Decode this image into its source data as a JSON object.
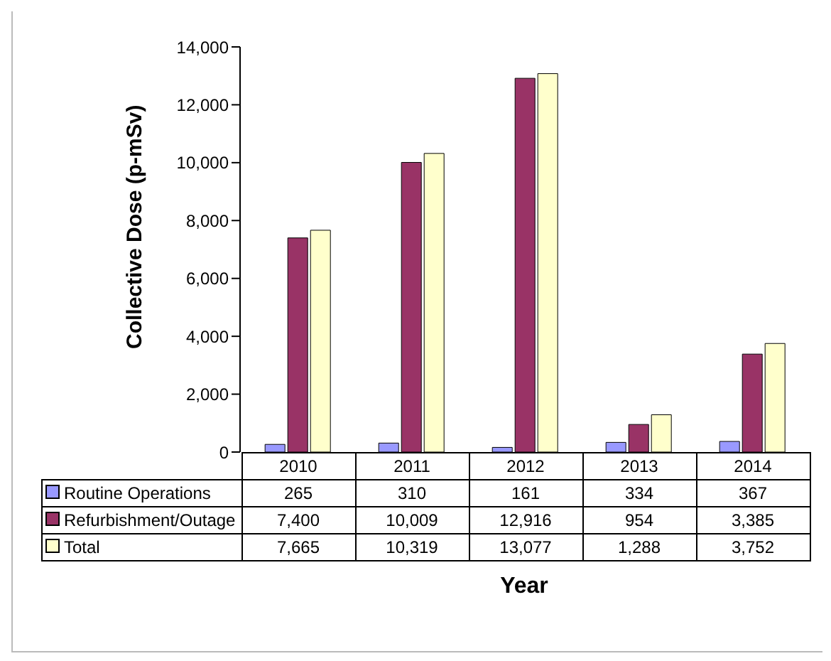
{
  "chart_data": {
    "type": "bar",
    "xlabel": "Year",
    "ylabel": "Collective Dose (p-mSv)",
    "categories": [
      "2010",
      "2011",
      "2012",
      "2013",
      "2014"
    ],
    "series": [
      {
        "name": "Routine Operations",
        "color": "#9999ff",
        "values": [
          265,
          310,
          161,
          334,
          367
        ],
        "value_labels": [
          "265",
          "310",
          "161",
          "334",
          "367"
        ]
      },
      {
        "name": "Refurbishment/Outage",
        "color": "#993366",
        "values": [
          7400,
          10009,
          12916,
          954,
          3385
        ],
        "value_labels": [
          "7,400",
          "10,009",
          "12,916",
          "954",
          "3,385"
        ]
      },
      {
        "name": "Total",
        "color": "#ffffcc",
        "values": [
          7665,
          10319,
          13077,
          1288,
          3752
        ],
        "value_labels": [
          "7,665",
          "10,319",
          "13,077",
          "1,288",
          "3,752"
        ]
      }
    ],
    "ylim": [
      0,
      14000
    ],
    "yticks": [
      0,
      {
        "value": 2000,
        "label": "2,000"
      },
      {
        "value": 4000,
        "label": "4,000"
      },
      {
        "value": 6000,
        "label": "6,000"
      },
      {
        "value": 8000,
        "label": "8,000"
      },
      {
        "value": 10000,
        "label": "10,000"
      },
      {
        "value": 12000,
        "label": "12,000"
      },
      {
        "value": 14000,
        "label": "14,000"
      }
    ],
    "legend": "bottom"
  }
}
